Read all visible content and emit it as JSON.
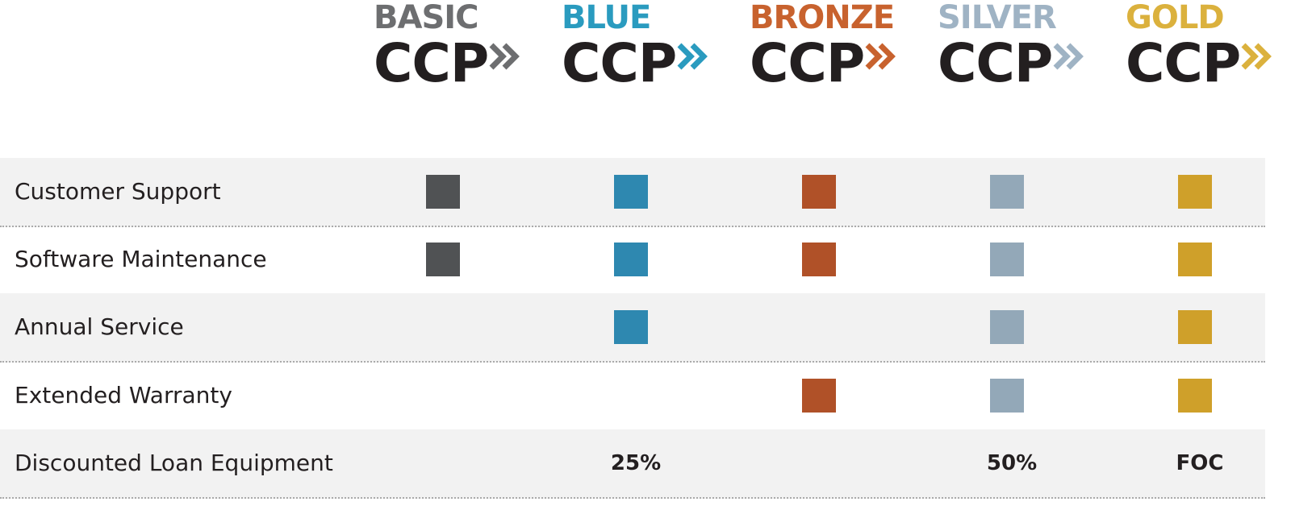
{
  "columns": [
    {
      "tier": "BASIC",
      "brand": "CCP",
      "color": "#6d6e70",
      "mark_color": "#505254"
    },
    {
      "tier": "BLUE",
      "brand": "CCP",
      "color": "#2a9bbf",
      "mark_color": "#2e88b0"
    },
    {
      "tier": "BRONZE",
      "brand": "CCP",
      "color": "#c8622e",
      "mark_color": "#b05128"
    },
    {
      "tier": "SILVER",
      "brand": "CCP",
      "color": "#9fb3c4",
      "mark_color": "#93a8b8"
    },
    {
      "tier": "GOLD",
      "brand": "CCP",
      "color": "#dbb13d",
      "mark_color": "#cfa02a"
    }
  ],
  "rows": [
    {
      "label": "Customer Support",
      "cells": [
        true,
        true,
        true,
        true,
        true
      ]
    },
    {
      "label": "Software Maintenance",
      "cells": [
        true,
        true,
        true,
        true,
        true
      ]
    },
    {
      "label": "Annual Service",
      "cells": [
        false,
        true,
        false,
        true,
        true
      ]
    },
    {
      "label": "Extended Warranty",
      "cells": [
        false,
        false,
        true,
        true,
        true
      ]
    },
    {
      "label": "Discounted Loan Equipment",
      "cells": [
        false,
        "25%",
        false,
        "50%",
        "FOC"
      ]
    }
  ]
}
